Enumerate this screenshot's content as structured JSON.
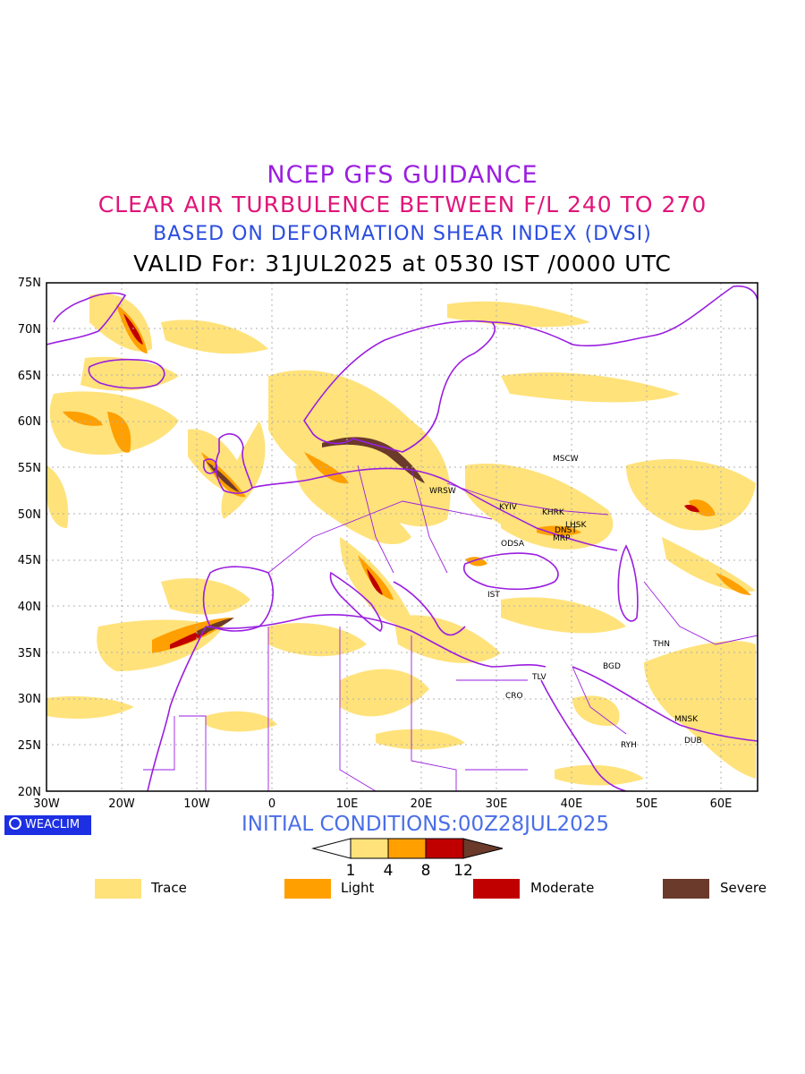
{
  "titles": {
    "line1": "NCEP GFS GUIDANCE",
    "line2": "CLEAR AIR TURBULENCE BETWEEN F/L 240 TO 270",
    "line3": "BASED ON DEFORMATION SHEAR INDEX (DVSI)",
    "line4": "VALID For: 31JUL2025 at 0530 IST /0000 UTC"
  },
  "initial_conditions": "INITIAL CONDITIONS:00Z28JUL2025",
  "badge": "WEACLIM",
  "axes": {
    "lon_labels": [
      "30W",
      "20W",
      "10W",
      "0",
      "10E",
      "20E",
      "30E",
      "40E",
      "50E",
      "60E"
    ],
    "lat_labels": [
      "75N",
      "70N",
      "65N",
      "60N",
      "55N",
      "50N",
      "45N",
      "40N",
      "35N",
      "30N",
      "25N",
      "20N"
    ]
  },
  "colorbar": {
    "ticks": [
      "1",
      "4",
      "8",
      "12"
    ],
    "colors": [
      "#ffe27a",
      "#ff9f00",
      "#c00000",
      "#6b3a2a"
    ]
  },
  "legend": [
    {
      "label": "Trace",
      "color": "#ffe27a"
    },
    {
      "label": "Light",
      "color": "#ff9f00"
    },
    {
      "label": "Moderate",
      "color": "#c00000"
    },
    {
      "label": "Severe",
      "color": "#6b3a2a"
    }
  ],
  "stations": [
    {
      "name": "MSCW"
    },
    {
      "name": "WRSW"
    },
    {
      "name": "KYIV"
    },
    {
      "name": "KHRK"
    },
    {
      "name": "LHSK"
    },
    {
      "name": "DNST"
    },
    {
      "name": "MRP"
    },
    {
      "name": "ODSA"
    },
    {
      "name": "IST"
    },
    {
      "name": "THN"
    },
    {
      "name": "BGD"
    },
    {
      "name": "TLV"
    },
    {
      "name": "CRO"
    },
    {
      "name": "MNSK"
    },
    {
      "name": "DUB"
    },
    {
      "name": "RYH"
    }
  ]
}
